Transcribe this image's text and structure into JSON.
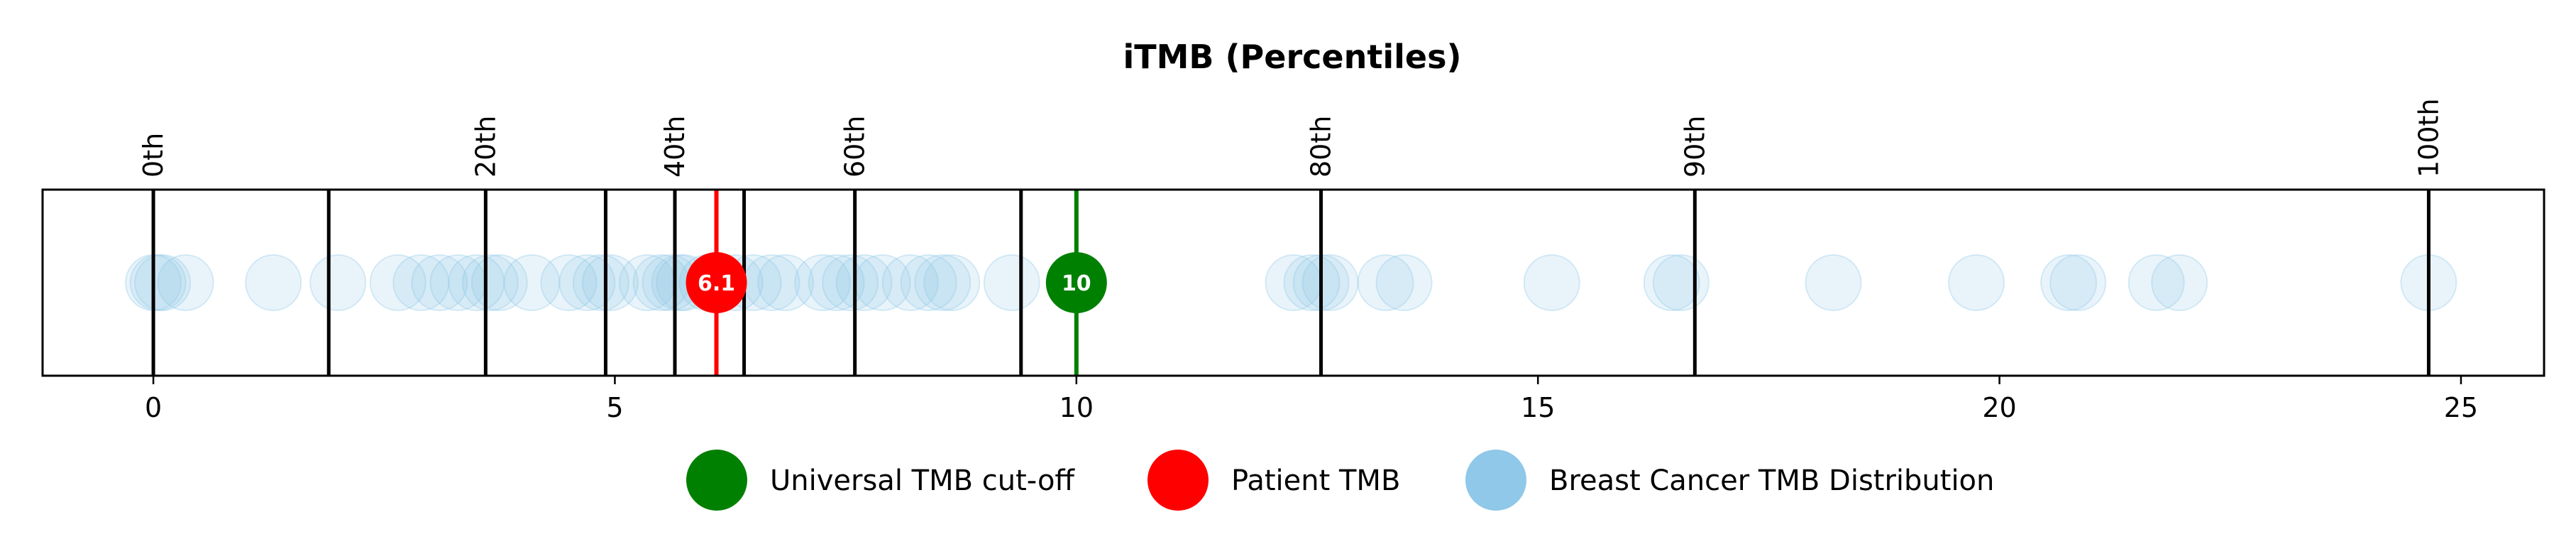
{
  "chart_data": {
    "type": "scatter",
    "title": "iTMB (Percentiles)",
    "xlabel": "",
    "ylabel": "",
    "xlim": [
      -1.2,
      25.9
    ],
    "x_ticks": [
      0,
      5,
      10,
      15,
      20,
      25
    ],
    "grid": false,
    "legend_position": "bottom-center",
    "percentile_lines": [
      {
        "x": 0.0,
        "label": "0th"
      },
      {
        "x": 1.9,
        "label": ""
      },
      {
        "x": 3.6,
        "label": "20th"
      },
      {
        "x": 4.9,
        "label": ""
      },
      {
        "x": 5.65,
        "label": "40th"
      },
      {
        "x": 6.4,
        "label": ""
      },
      {
        "x": 7.6,
        "label": "60th"
      },
      {
        "x": 9.4,
        "label": ""
      },
      {
        "x": 12.65,
        "label": "80th"
      },
      {
        "x": 16.7,
        "label": "90th"
      },
      {
        "x": 24.65,
        "label": "100th"
      }
    ],
    "distribution": {
      "name": "Breast Cancer TMB Distribution",
      "color": "#8fc8e8",
      "values": [
        0.0,
        0.05,
        0.1,
        0.35,
        1.3,
        2.0,
        2.65,
        2.9,
        3.1,
        3.3,
        3.5,
        3.65,
        3.75,
        4.1,
        4.5,
        4.7,
        4.85,
        4.95,
        5.35,
        5.5,
        5.6,
        5.7,
        5.75,
        6.0,
        6.3,
        6.5,
        6.7,
        6.85,
        7.25,
        7.4,
        7.55,
        7.7,
        7.9,
        8.2,
        8.4,
        8.55,
        8.65,
        9.3,
        12.35,
        12.55,
        12.65,
        12.75,
        13.35,
        13.55,
        15.15,
        16.45,
        16.55,
        18.2,
        19.75,
        20.75,
        20.85,
        21.7,
        21.95,
        24.65
      ]
    },
    "patient_tmb": {
      "name": "Patient TMB",
      "value": 6.1,
      "label": "6.1",
      "color": "#ff0000"
    },
    "universal_cutoff": {
      "name": "Universal TMB cut-off",
      "value": 10,
      "label": "10",
      "color": "#008000"
    },
    "legend": [
      {
        "label": "Universal TMB cut-off",
        "color": "#008000"
      },
      {
        "label": "Patient TMB",
        "color": "#ff0000"
      },
      {
        "label": "Breast Cancer TMB Distribution",
        "color": "#8fc8e8"
      }
    ]
  }
}
